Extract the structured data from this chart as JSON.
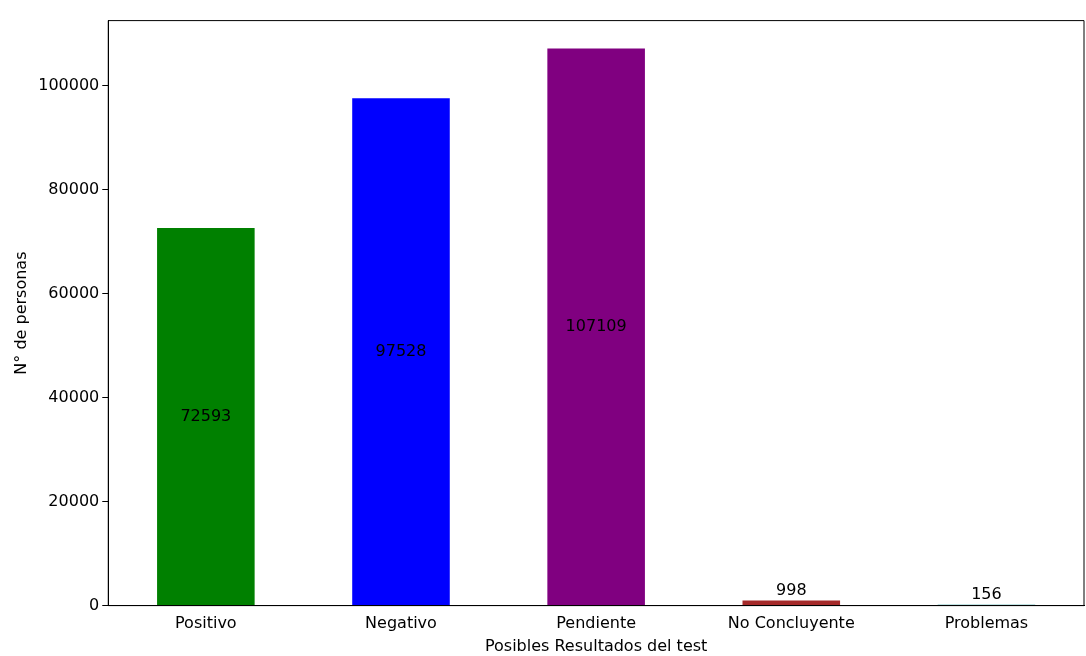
{
  "chart_data": {
    "type": "bar",
    "xlabel": "Posibles Resultados del test",
    "ylabel": "N° de personas",
    "categories": [
      "Positivo",
      "Negativo",
      "Pendiente",
      "No Concluyente",
      "Problemas"
    ],
    "values": [
      72593,
      97528,
      107109,
      998,
      156
    ],
    "colors": [
      "#008000",
      "#0000ff",
      "#800080",
      "#a52a2a",
      "#008b8b"
    ],
    "ylim": [
      0,
      112464
    ],
    "yticks": [
      0,
      20000,
      40000,
      60000,
      80000,
      100000
    ],
    "data_labels": true,
    "grid": false,
    "legend": false
  }
}
